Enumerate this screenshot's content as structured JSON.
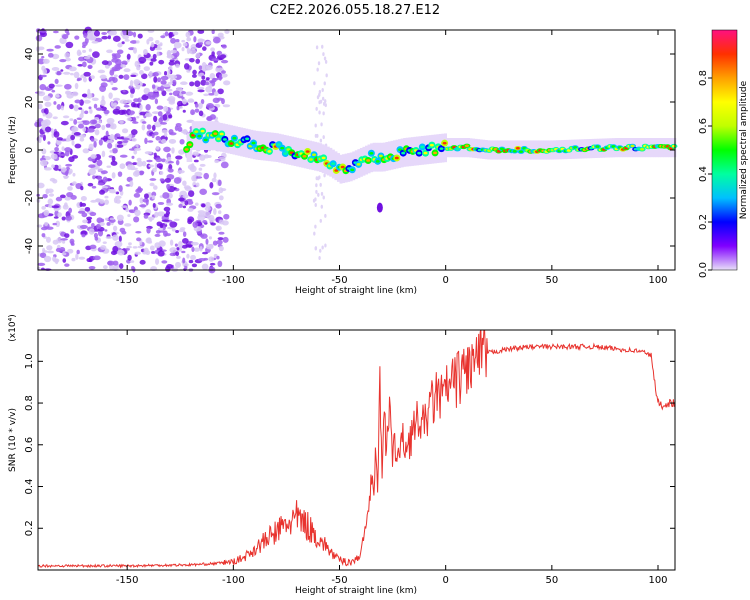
{
  "title": "C2E2.2026.055.18.27.E12",
  "colors": {
    "snr_line": "#e8332e",
    "frame": "#000000"
  },
  "chart_data": [
    {
      "type": "heatmap",
      "name": "spectrogram",
      "xlabel": "Height of straight line (km)",
      "ylabel": "Frequency (Hz)",
      "xlim": [
        -192,
        108
      ],
      "ylim": [
        -50,
        50
      ],
      "x_ticks": [
        -150,
        -100,
        -50,
        0,
        50,
        100
      ],
      "y_ticks": [
        -40,
        -20,
        0,
        20,
        40
      ],
      "x_tick_labels": [
        "-150",
        "-100",
        "-50",
        "0",
        "50",
        "100"
      ],
      "y_tick_labels": [
        "-40",
        "-20",
        "0",
        "20",
        "40"
      ],
      "colorbar": {
        "label": "Normalized spectral amplitude",
        "range": [
          0,
          1
        ],
        "ticks": [
          0.0,
          0.2,
          0.4,
          0.6,
          0.8
        ],
        "tick_labels": [
          "0.0",
          "0.2",
          "0.4",
          "0.6",
          "0.8"
        ],
        "colormap": [
          "#e8e0f8",
          "#8000ff",
          "#0000ff",
          "#00c0ff",
          "#00ffa0",
          "#00ff00",
          "#c0ff00",
          "#ffff00",
          "#ffa000",
          "#ff3000",
          "#ff1080"
        ]
      },
      "ridge_center": [
        [
          -120,
          6
        ],
        [
          -110,
          6
        ],
        [
          -100,
          4
        ],
        [
          -90,
          2
        ],
        [
          -80,
          1
        ],
        [
          -70,
          -1
        ],
        [
          -60,
          -3
        ],
        [
          -55,
          -5
        ],
        [
          -50,
          -8
        ],
        [
          -45,
          -7
        ],
        [
          -40,
          -5
        ],
        [
          -35,
          -3
        ],
        [
          -30,
          -3
        ],
        [
          -20,
          -1
        ],
        [
          -10,
          0
        ],
        [
          0,
          1
        ],
        [
          10,
          1
        ],
        [
          20,
          0
        ],
        [
          30,
          0
        ],
        [
          50,
          0
        ],
        [
          80,
          1
        ],
        [
          108,
          1
        ]
      ],
      "noise_region_x": [
        -192,
        -103
      ],
      "isolated_blob": {
        "x": -31,
        "y": -24
      }
    },
    {
      "type": "line",
      "name": "snr",
      "xlabel": "Height of straight line (km)",
      "ylabel": "SNR (10 * v/v)",
      "y_multiplier": "(x10⁴)",
      "xlim": [
        -192,
        108
      ],
      "ylim": [
        0,
        1.15
      ],
      "x_ticks": [
        -150,
        -100,
        -50,
        0,
        50,
        100
      ],
      "y_ticks": [
        0.2,
        0.4,
        0.6,
        0.8,
        1.0
      ],
      "x_tick_labels": [
        "-150",
        "-100",
        "-50",
        "0",
        "50",
        "100"
      ],
      "y_tick_labels": [
        "0.2",
        "0.4",
        "0.6",
        "0.8",
        "1.0"
      ],
      "series": [
        {
          "name": "SNR",
          "x": [
            -192,
            -150,
            -120,
            -110,
            -100,
            -95,
            -90,
            -85,
            -80,
            -75,
            -70,
            -65,
            -60,
            -55,
            -52,
            -48,
            -45,
            -42,
            -40,
            -38,
            -36,
            -35,
            -34,
            -33,
            -32,
            -31,
            -30,
            -29,
            -28,
            -27,
            -26,
            -25,
            -24,
            -22,
            -20,
            -18,
            -16,
            -14,
            -12,
            -10,
            -8,
            -6,
            -4,
            -2,
            0,
            2,
            4,
            6,
            8,
            10,
            12,
            14,
            16,
            18,
            20,
            25,
            30,
            40,
            50,
            60,
            70,
            80,
            90,
            95,
            97,
            99,
            100,
            102,
            105,
            108
          ],
          "values": [
            0.02,
            0.02,
            0.025,
            0.03,
            0.04,
            0.06,
            0.1,
            0.14,
            0.18,
            0.22,
            0.25,
            0.21,
            0.15,
            0.1,
            0.06,
            0.04,
            0.04,
            0.05,
            0.08,
            0.2,
            0.3,
            0.5,
            0.35,
            0.6,
            0.4,
            0.85,
            0.45,
            0.9,
            0.55,
            0.7,
            0.75,
            0.5,
            0.6,
            0.55,
            0.62,
            0.6,
            0.65,
            0.7,
            0.72,
            0.68,
            0.78,
            0.8,
            0.85,
            0.82,
            0.86,
            0.88,
            0.9,
            0.92,
            0.95,
            0.97,
            0.98,
            1.0,
            1.02,
            1.03,
            1.04,
            1.05,
            1.06,
            1.07,
            1.07,
            1.07,
            1.07,
            1.06,
            1.05,
            1.04,
            1.02,
            0.85,
            0.8,
            0.79,
            0.8,
            0.8
          ]
        }
      ]
    }
  ]
}
